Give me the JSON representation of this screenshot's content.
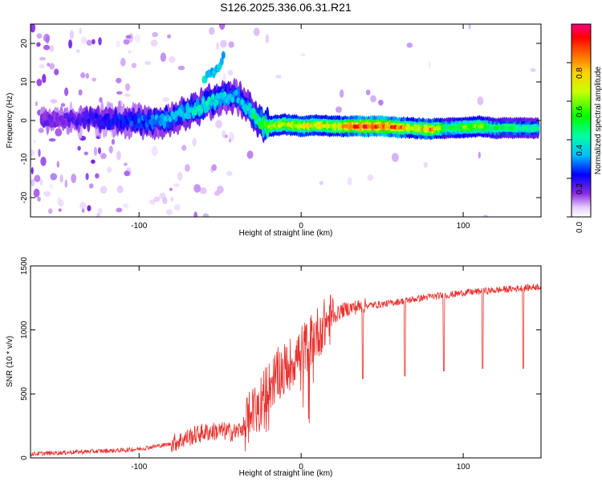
{
  "chart_data": [
    {
      "type": "heatmap",
      "title": "S126.2025.336.06.31.R21",
      "xlabel": "Height of straight line (km)",
      "ylabel": "Frequency (Hz)",
      "xlim": [
        -167,
        148
      ],
      "ylim": [
        -25,
        25
      ],
      "xticks": [
        -100,
        0,
        100
      ],
      "xtick_labels": [
        "-100",
        "0",
        "100"
      ],
      "yticks": [
        -20,
        -10,
        0,
        10,
        20
      ],
      "ytick_labels": [
        "-20",
        "-10",
        "0",
        "10",
        "20"
      ],
      "colorbar": {
        "label": "Normalized spectral amplitude",
        "range": [
          0,
          1
        ],
        "ticks": [
          0.0,
          0.2,
          0.4,
          0.6,
          0.8
        ],
        "tick_labels": [
          "0.0",
          "0.2",
          "0.4",
          "0.6",
          "0.8"
        ]
      },
      "ridge": {
        "x": [
          -150,
          -130,
          -110,
          -95,
          -85,
          -75,
          -65,
          -55,
          -45,
          -38,
          -30,
          -25,
          -20,
          -10,
          0,
          10,
          20,
          30,
          40,
          50,
          60,
          70,
          80,
          90,
          100,
          110,
          120,
          130,
          140,
          148
        ],
        "freq": [
          0,
          0.5,
          0,
          -0.5,
          0,
          1.5,
          3,
          5,
          6.5,
          6,
          2,
          -0.5,
          -1.5,
          -1,
          -1.5,
          -1.2,
          -1.5,
          -1.5,
          -1.5,
          -1.5,
          -1.8,
          -2,
          -2.2,
          -2,
          -1.8,
          -1.5,
          -2,
          -2,
          -2,
          -2
        ],
        "amplitude": [
          0.15,
          0.2,
          0.25,
          0.3,
          0.35,
          0.35,
          0.4,
          0.4,
          0.35,
          0.35,
          0.45,
          0.5,
          0.65,
          0.7,
          0.75,
          0.75,
          0.7,
          0.9,
          0.95,
          0.95,
          0.9,
          0.7,
          0.85,
          0.5,
          0.6,
          0.65,
          0.5,
          0.5,
          0.45,
          0.45
        ]
      }
    },
    {
      "type": "line",
      "title": "",
      "xlabel": "Height of straight line (km)",
      "ylabel": "SNR (10 * v/v)",
      "xlim": [
        -167,
        148
      ],
      "ylim": [
        0,
        1500
      ],
      "xticks": [
        -100,
        0,
        100
      ],
      "xtick_labels": [
        "-100",
        "0",
        "100"
      ],
      "yticks": [
        0,
        500,
        1000,
        1500
      ],
      "ytick_labels": [
        "0",
        "500",
        "1000",
        "1500"
      ],
      "color": "#e8312e",
      "series": [
        {
          "name": "SNR",
          "x": [
            -167,
            -150,
            -130,
            -110,
            -100,
            -90,
            -80,
            -70,
            -60,
            -50,
            -40,
            -35,
            -30,
            -25,
            -20,
            -15,
            -10,
            -5,
            0,
            5,
            10,
            15,
            20,
            25,
            30,
            35,
            40,
            50,
            60,
            70,
            80,
            90,
            100,
            110,
            120,
            130,
            140,
            148
          ],
          "values": [
            30,
            40,
            50,
            60,
            70,
            90,
            110,
            160,
            200,
            210,
            200,
            250,
            350,
            450,
            550,
            650,
            700,
            760,
            830,
            900,
            980,
            1050,
            1100,
            1150,
            1170,
            1180,
            1190,
            1200,
            1220,
            1240,
            1260,
            1270,
            1290,
            1300,
            1310,
            1320,
            1330,
            1340
          ]
        }
      ]
    }
  ]
}
